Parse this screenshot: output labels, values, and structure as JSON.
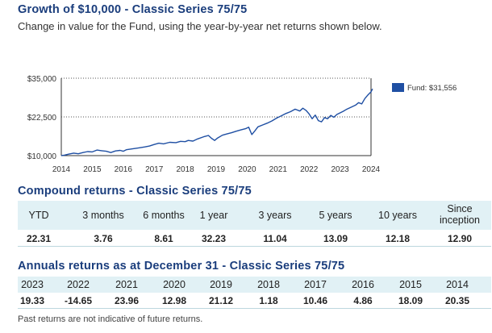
{
  "growth": {
    "title": "Growth of $10,000 - Classic Series 75/75",
    "subtitle": "Change in value for the Fund, using the year-by-year net returns shown below."
  },
  "chart_data": {
    "type": "line",
    "title": "Growth of $10,000 - Classic Series 75/75",
    "xlabel": "",
    "ylabel": "",
    "xlim": [
      2014,
      2024
    ],
    "ylim": [
      10000,
      35000
    ],
    "y_ticks": [
      "$10,000",
      "$22,500",
      "$35,000"
    ],
    "x_ticks": [
      "2014",
      "2015",
      "2016",
      "2017",
      "2018",
      "2019",
      "2020",
      "2021",
      "2022",
      "2023",
      "2024"
    ],
    "grid": "dotted horizontal at y ticks",
    "legend_position": "right",
    "series": [
      {
        "name": "Fund: $31,556",
        "color": "#1f4fa3",
        "points": [
          [
            2014.0,
            10000
          ],
          [
            2014.1,
            10150
          ],
          [
            2014.25,
            10500
          ],
          [
            2014.4,
            10800
          ],
          [
            2014.55,
            10600
          ],
          [
            2014.7,
            11000
          ],
          [
            2014.85,
            11300
          ],
          [
            2015.0,
            11200
          ],
          [
            2015.15,
            11800
          ],
          [
            2015.3,
            11600
          ],
          [
            2015.45,
            11400
          ],
          [
            2015.6,
            11000
          ],
          [
            2015.75,
            11500
          ],
          [
            2015.9,
            11700
          ],
          [
            2016.0,
            11400
          ],
          [
            2016.1,
            11900
          ],
          [
            2016.3,
            12200
          ],
          [
            2016.5,
            12500
          ],
          [
            2016.7,
            12800
          ],
          [
            2016.85,
            13100
          ],
          [
            2017.0,
            13600
          ],
          [
            2017.15,
            14000
          ],
          [
            2017.3,
            13800
          ],
          [
            2017.5,
            14300
          ],
          [
            2017.7,
            14200
          ],
          [
            2017.85,
            14600
          ],
          [
            2018.0,
            14500
          ],
          [
            2018.1,
            14900
          ],
          [
            2018.25,
            14700
          ],
          [
            2018.4,
            15400
          ],
          [
            2018.6,
            16100
          ],
          [
            2018.75,
            16500
          ],
          [
            2018.85,
            15600
          ],
          [
            2018.95,
            14900
          ],
          [
            2019.05,
            15700
          ],
          [
            2019.2,
            16600
          ],
          [
            2019.35,
            17000
          ],
          [
            2019.5,
            17400
          ],
          [
            2019.65,
            17900
          ],
          [
            2019.8,
            18300
          ],
          [
            2019.95,
            18700
          ],
          [
            2020.05,
            19200
          ],
          [
            2020.15,
            16800
          ],
          [
            2020.25,
            18000
          ],
          [
            2020.35,
            19300
          ],
          [
            2020.5,
            19900
          ],
          [
            2020.65,
            20500
          ],
          [
            2020.8,
            21200
          ],
          [
            2020.95,
            22100
          ],
          [
            2021.1,
            22800
          ],
          [
            2021.25,
            23600
          ],
          [
            2021.4,
            24200
          ],
          [
            2021.55,
            25000
          ],
          [
            2021.7,
            24400
          ],
          [
            2021.8,
            25300
          ],
          [
            2021.9,
            24600
          ],
          [
            2022.0,
            23500
          ],
          [
            2022.1,
            21900
          ],
          [
            2022.2,
            23100
          ],
          [
            2022.3,
            21300
          ],
          [
            2022.4,
            20900
          ],
          [
            2022.5,
            22300
          ],
          [
            2022.6,
            21900
          ],
          [
            2022.7,
            23000
          ],
          [
            2022.8,
            22400
          ],
          [
            2022.9,
            23300
          ],
          [
            2023.0,
            23800
          ],
          [
            2023.1,
            24300
          ],
          [
            2023.2,
            24900
          ],
          [
            2023.35,
            25600
          ],
          [
            2023.5,
            26300
          ],
          [
            2023.6,
            27100
          ],
          [
            2023.7,
            26700
          ],
          [
            2023.8,
            28400
          ],
          [
            2023.9,
            29600
          ],
          [
            2024.0,
            30600
          ],
          [
            2024.05,
            31556
          ]
        ]
      }
    ]
  },
  "legend": {
    "label": "Fund: $31,556",
    "color": "#1f4fa3"
  },
  "compound": {
    "title": "Compound returns - Classic Series 75/75",
    "headers": [
      "YTD",
      "3 months",
      "6 months",
      "1 year",
      "3 years",
      "5 years",
      "10 years",
      "Since inception"
    ],
    "values": [
      "22.31",
      "3.76",
      "8.61",
      "32.23",
      "11.04",
      "13.09",
      "12.18",
      "12.90"
    ]
  },
  "annuals": {
    "title": "Annuals returns as at December 31 - Classic Series 75/75",
    "years": [
      "2023",
      "2022",
      "2021",
      "2020",
      "2019",
      "2018",
      "2017",
      "2016",
      "2015",
      "2014"
    ],
    "values": [
      "19.33",
      "-14.65",
      "23.96",
      "12.98",
      "21.12",
      "1.18",
      "10.46",
      "4.86",
      "18.09",
      "20.35"
    ]
  },
  "footnote": "Past returns are not indicative of future returns."
}
